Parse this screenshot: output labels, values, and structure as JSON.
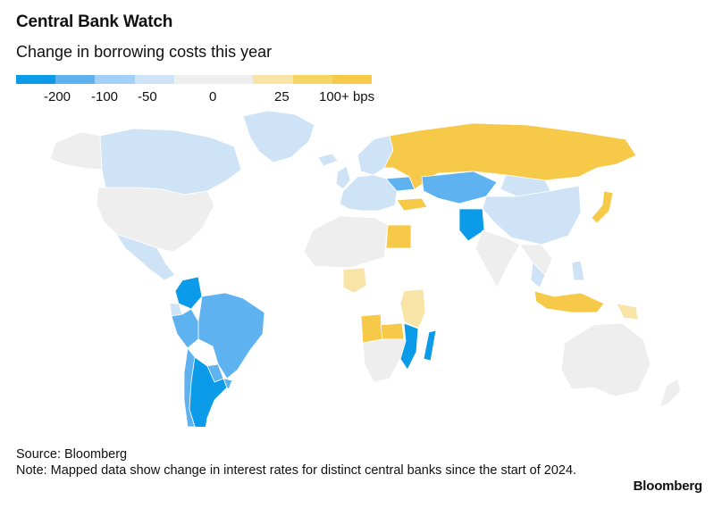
{
  "header": {
    "title": "Central Bank Watch",
    "subtitle": "Change in borrowing costs this year"
  },
  "legend": {
    "colors": [
      "#0c9be8",
      "#5fb2f0",
      "#a3d0f7",
      "#cfe3f6",
      "#eeeeee",
      "#eeeeee",
      "#f7e4a6",
      "#f6d662",
      "#f7c948"
    ],
    "labels": [
      "-200",
      "-100",
      "-50",
      "0",
      "25",
      "100+ bps"
    ],
    "label_positions_note": ""
  },
  "map": {
    "no_data_color": "#ffffff",
    "regions": [
      {
        "name": "greenland",
        "category": "-50"
      },
      {
        "name": "canada",
        "category": "-50"
      },
      {
        "name": "united-states",
        "category": "0"
      },
      {
        "name": "alaska",
        "category": "0"
      },
      {
        "name": "mexico",
        "category": "-50"
      },
      {
        "name": "colombia",
        "category": "-200"
      },
      {
        "name": "venezuela",
        "category": "none"
      },
      {
        "name": "brazil",
        "category": "-100"
      },
      {
        "name": "peru",
        "category": "-100"
      },
      {
        "name": "chile",
        "category": "-100"
      },
      {
        "name": "argentina",
        "category": "-200"
      },
      {
        "name": "paraguay",
        "category": "-100"
      },
      {
        "name": "bolivia",
        "category": "none"
      },
      {
        "name": "uruguay",
        "category": "-100"
      },
      {
        "name": "ecuador",
        "category": "-50"
      },
      {
        "name": "iceland",
        "category": "-50"
      },
      {
        "name": "uk",
        "category": "-50"
      },
      {
        "name": "europe",
        "category": "-50"
      },
      {
        "name": "scandinavia",
        "category": "-50"
      },
      {
        "name": "russia",
        "category": "100+"
      },
      {
        "name": "ukraine",
        "category": "-100"
      },
      {
        "name": "turkey",
        "category": "100+"
      },
      {
        "name": "kazakhstan",
        "category": "-100"
      },
      {
        "name": "china",
        "category": "-50"
      },
      {
        "name": "mongolia",
        "category": "-50"
      },
      {
        "name": "japan",
        "category": "100+"
      },
      {
        "name": "india",
        "category": "0"
      },
      {
        "name": "pakistan",
        "category": "-200"
      },
      {
        "name": "middle-east",
        "category": "none"
      },
      {
        "name": "egypt",
        "category": "100+"
      },
      {
        "name": "north-africa",
        "category": "0"
      },
      {
        "name": "nigeria",
        "category": "25"
      },
      {
        "name": "angola",
        "category": "100+"
      },
      {
        "name": "zambia",
        "category": "100+"
      },
      {
        "name": "mozambique",
        "category": "-200"
      },
      {
        "name": "east-africa",
        "category": "25"
      },
      {
        "name": "south-africa",
        "category": "0"
      },
      {
        "name": "central-africa",
        "category": "none"
      },
      {
        "name": "madagascar",
        "category": "-200"
      },
      {
        "name": "indonesia",
        "category": "100+"
      },
      {
        "name": "thailand",
        "category": "-50"
      },
      {
        "name": "southeast-asia",
        "category": "0"
      },
      {
        "name": "philippines",
        "category": "-50"
      },
      {
        "name": "australia",
        "category": "0"
      },
      {
        "name": "new-zealand",
        "category": "0"
      },
      {
        "name": "png",
        "category": "25"
      }
    ]
  },
  "footer": {
    "source": "Source: Bloomberg",
    "note": "Note: Mapped data show change in interest rates for distinct central banks since the start of 2024.",
    "logo": "Bloomberg"
  }
}
